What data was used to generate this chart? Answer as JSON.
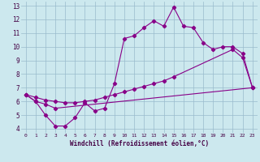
{
  "bg_color": "#cce8ee",
  "line_color": "#880088",
  "grid_color": "#99bbcc",
  "xlim": [
    -0.5,
    23.5
  ],
  "ylim": [
    3.7,
    13.3
  ],
  "xticks": [
    0,
    1,
    2,
    3,
    4,
    5,
    6,
    7,
    8,
    9,
    10,
    11,
    12,
    13,
    14,
    15,
    16,
    17,
    18,
    19,
    20,
    21,
    22,
    23
  ],
  "yticks": [
    4,
    5,
    6,
    7,
    8,
    9,
    10,
    11,
    12,
    13
  ],
  "line1_x": [
    0,
    1,
    2,
    3,
    4,
    5,
    6,
    7,
    8,
    9,
    10,
    11,
    12,
    13,
    14,
    15,
    16,
    17,
    18,
    19,
    20,
    21,
    22,
    23
  ],
  "line1_y": [
    6.5,
    6.0,
    5.0,
    4.2,
    4.2,
    4.8,
    5.9,
    5.3,
    5.5,
    7.3,
    10.6,
    10.8,
    11.4,
    11.9,
    11.5,
    12.9,
    11.5,
    11.4,
    10.3,
    9.8,
    10.0,
    10.0,
    9.5,
    7.0
  ],
  "line2_x": [
    0,
    1,
    2,
    3,
    23
  ],
  "line2_y": [
    6.5,
    6.0,
    5.8,
    5.5,
    7.0
  ],
  "line3_x": [
    0,
    1,
    2,
    3,
    4,
    5,
    6,
    7,
    8,
    9,
    10,
    11,
    12,
    13,
    14,
    15,
    21,
    22,
    23
  ],
  "line3_y": [
    6.5,
    6.3,
    6.1,
    6.0,
    5.9,
    5.9,
    6.0,
    6.1,
    6.3,
    6.5,
    6.7,
    6.9,
    7.1,
    7.3,
    7.5,
    7.8,
    9.8,
    9.2,
    7.0
  ],
  "xlabel": "Windchill (Refroidissement éolien,°C)"
}
